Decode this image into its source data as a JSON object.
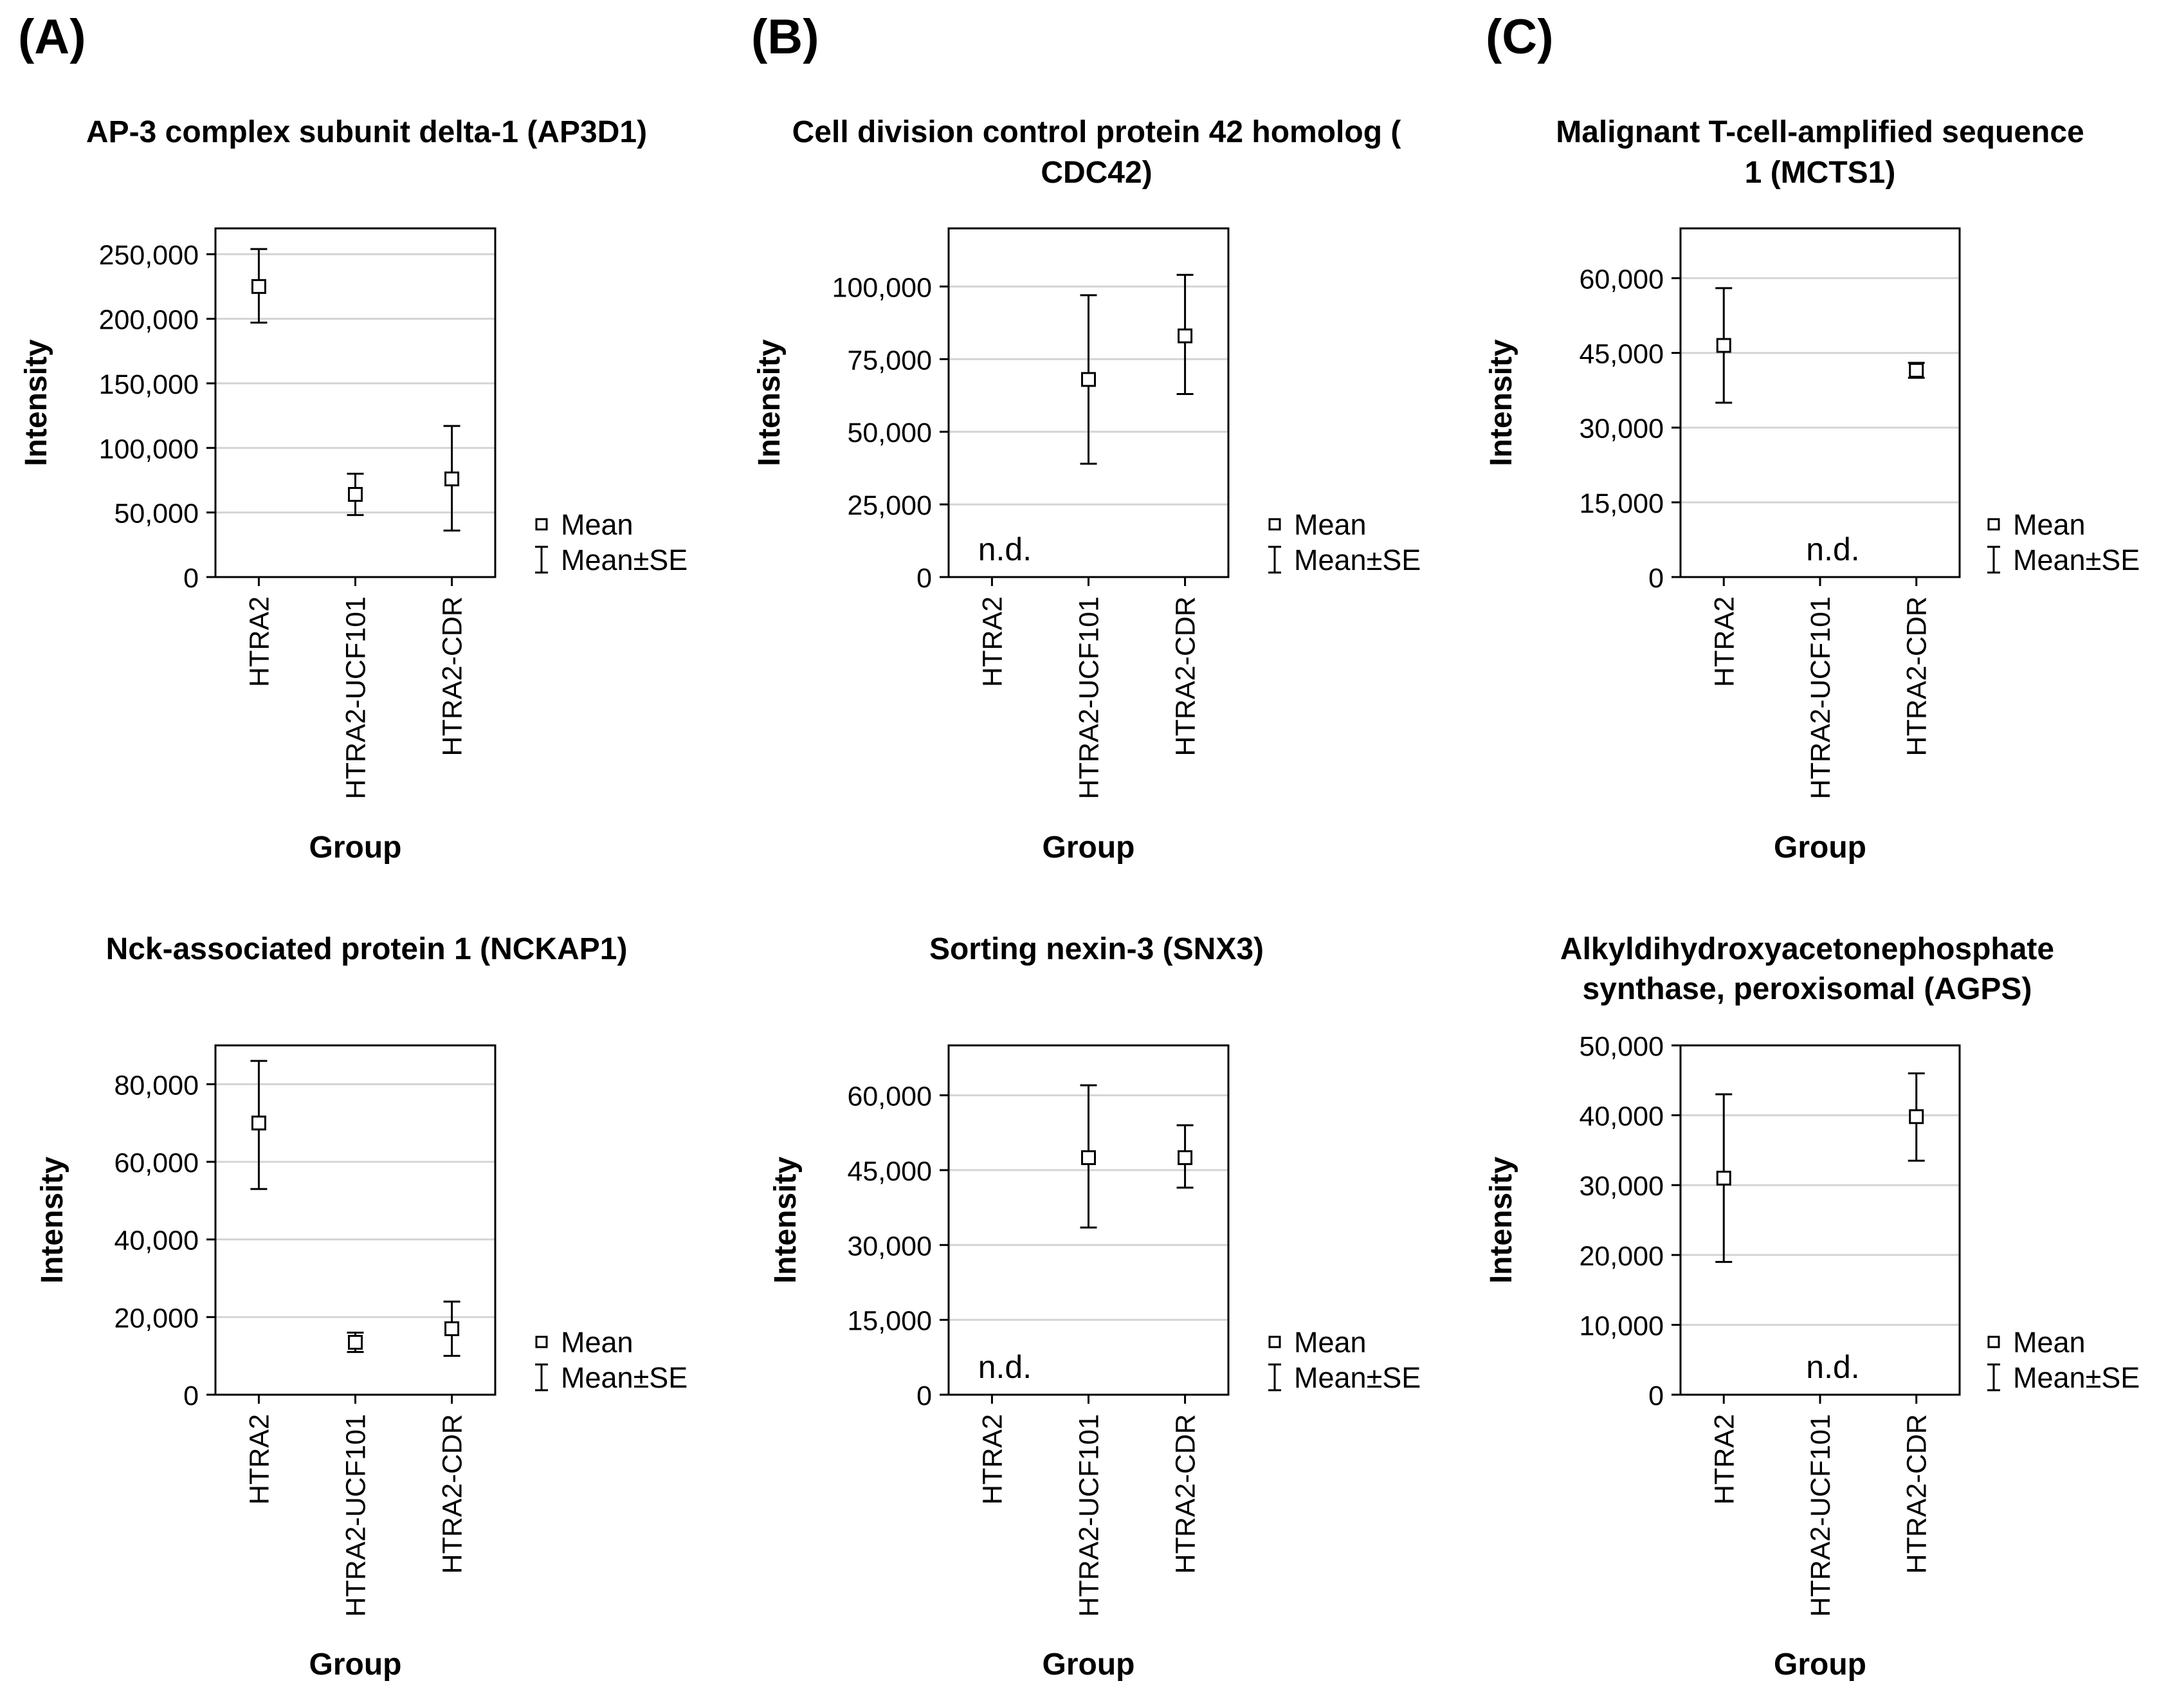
{
  "panel_labels": [
    "(A)",
    "(B)",
    "(C)"
  ],
  "legend": {
    "mean_label": "Mean",
    "se_label": "Mean±SE"
  },
  "chart_data": [
    {
      "type": "scatter",
      "title": "AP-3 complex subunit delta-1 (AP3D1)",
      "xlabel": "Group",
      "ylabel": "Intensity",
      "categories": [
        "HTRA2",
        "HTRA2-UCF101",
        "HTRA2-CDR"
      ],
      "ylim": [
        0,
        270000
      ],
      "yticks": [
        "0",
        "50,000",
        "100,000",
        "150,000",
        "200,000",
        "250,000"
      ],
      "ytick_values": [
        0,
        50000,
        100000,
        150000,
        200000,
        250000
      ],
      "mean": [
        225000,
        64000,
        76000
      ],
      "se_low": [
        197000,
        48000,
        36000
      ],
      "se_high": [
        254000,
        80000,
        117000
      ],
      "annotation": "",
      "grid": true,
      "legend": "right"
    },
    {
      "type": "scatter",
      "title": "Cell division control protein 42 homolog (CDC42)",
      "xlabel": "Group",
      "ylabel": "Intensity",
      "categories": [
        "HTRA2",
        "HTRA2-UCF101",
        "HTRA2-CDR"
      ],
      "ylim": [
        0,
        120000
      ],
      "yticks": [
        "0",
        "25,000",
        "50,000",
        "75,000",
        "100,000"
      ],
      "ytick_values": [
        0,
        25000,
        50000,
        75000,
        100000
      ],
      "mean": [
        null,
        68000,
        83000
      ],
      "se_low": [
        null,
        39000,
        63000
      ],
      "se_high": [
        null,
        97000,
        104000
      ],
      "annotation": "n.d.",
      "annotation_category": 0,
      "grid": true,
      "legend": "right"
    },
    {
      "type": "scatter",
      "title": "Malignant T-cell-amplified sequence 1 (MCTS1)",
      "xlabel": "Group",
      "ylabel": "Intensity",
      "categories": [
        "HTRA2",
        "HTRA2-UCF101",
        "HTRA2-CDR"
      ],
      "ylim": [
        0,
        70000
      ],
      "yticks": [
        "0",
        "15,000",
        "30,000",
        "45,000",
        "60,000"
      ],
      "ytick_values": [
        0,
        15000,
        30000,
        45000,
        60000
      ],
      "mean": [
        46500,
        null,
        41500
      ],
      "se_low": [
        35000,
        null,
        40000
      ],
      "se_high": [
        58000,
        null,
        43000
      ],
      "annotation": "n.d.",
      "annotation_category": 1,
      "grid": true,
      "legend": "right"
    },
    {
      "type": "scatter",
      "title": "Nck-associated protein 1 (NCKAP1)",
      "xlabel": "Group",
      "ylabel": "Intensity",
      "categories": [
        "HTRA2",
        "HTRA2-UCF101",
        "HTRA2-CDR"
      ],
      "ylim": [
        0,
        90000
      ],
      "yticks": [
        "0",
        "20,000",
        "40,000",
        "60,000",
        "80,000"
      ],
      "ytick_values": [
        0,
        20000,
        40000,
        60000,
        80000
      ],
      "mean": [
        70000,
        13500,
        17000
      ],
      "se_low": [
        53000,
        11000,
        10000
      ],
      "se_high": [
        86000,
        16000,
        24000
      ],
      "annotation": "",
      "grid": true,
      "legend": "right"
    },
    {
      "type": "scatter",
      "title": "Sorting nexin-3 (SNX3)",
      "xlabel": "Group",
      "ylabel": "Intensity",
      "categories": [
        "HTRA2",
        "HTRA2-UCF101",
        "HTRA2-CDR"
      ],
      "ylim": [
        0,
        70000
      ],
      "yticks": [
        "0",
        "15,000",
        "30,000",
        "45,000",
        "60,000"
      ],
      "ytick_values": [
        0,
        15000,
        30000,
        45000,
        60000
      ],
      "mean": [
        null,
        47500,
        47500
      ],
      "se_low": [
        null,
        33500,
        41500
      ],
      "se_high": [
        null,
        62000,
        54000
      ],
      "annotation": "n.d.",
      "annotation_category": 0,
      "grid": true,
      "legend": "right"
    },
    {
      "type": "scatter",
      "title": "Alkyldihydroxyacetonephosphate synthase, peroxisomal (AGPS)",
      "xlabel": "Group",
      "ylabel": "Intensity",
      "categories": [
        "HTRA2",
        "HTRA2-UCF101",
        "HTRA2-CDR"
      ],
      "ylim": [
        0,
        50000
      ],
      "yticks": [
        "0",
        "10,000",
        "20,000",
        "30,000",
        "40,000",
        "50,000"
      ],
      "ytick_values": [
        0,
        10000,
        20000,
        30000,
        40000,
        50000
      ],
      "mean": [
        31000,
        null,
        39800
      ],
      "se_low": [
        19000,
        null,
        33500
      ],
      "se_high": [
        43000,
        null,
        46000
      ],
      "annotation": "n.d.",
      "annotation_category": 1,
      "grid": true,
      "legend": "right"
    }
  ]
}
